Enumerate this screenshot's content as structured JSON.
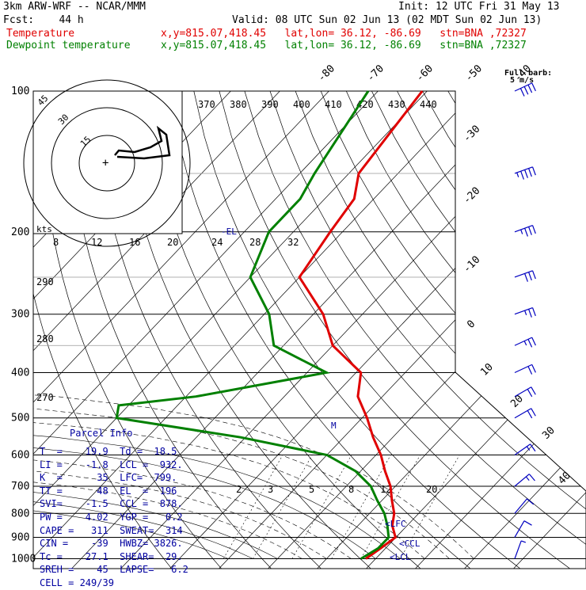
{
  "header": {
    "line1_left": "3km ARW-WRF -- NCAR/MMM",
    "line1_right": "Init: 12 UTC Fri 31 May 13",
    "line2_left": "Fcst:    44 h",
    "line2_right": "Valid: 08 UTC Sun 02 Jun 13 (02 MDT Sun 02 Jun 13)",
    "temp_label": "Temperature",
    "temp_info": "x,y=815.07,418.45   lat,lon= 36.12, -86.69   stn=BNA ,72327",
    "dew_label": "Dewpoint temperature",
    "dew_info": "x,y=815.07,418.45   lat,lon= 36.12, -86.69   stn=BNA ,72327"
  },
  "colors": {
    "temperature": "#e00000",
    "dewpoint": "#008000",
    "barbs": "#0000c0",
    "text_blue": "#0000a0"
  },
  "chart_data": {
    "type": "line",
    "subtype": "skew-T log-P sounding",
    "pressure_ticks": [
      "100",
      "200",
      "300",
      "400",
      "500",
      "600",
      "700",
      "800",
      "900",
      "1000"
    ],
    "pressure_levels": [
      100,
      200,
      300,
      400,
      500,
      600,
      700,
      800,
      900,
      1000
    ],
    "isotherm_top_labels": [
      "-80",
      "-70",
      "-60",
      "-50",
      "-40"
    ],
    "isotherm_right_labels": [
      "-30",
      "-20",
      "-10",
      "0",
      "10",
      "20",
      "30",
      "40"
    ],
    "theta_e_labels": [
      "370",
      "380",
      "390",
      "400",
      "410",
      "420",
      "430",
      "440"
    ],
    "theta_labels": [
      "290",
      "280",
      "270"
    ],
    "mixing_ratio_labels": [
      "2",
      "3",
      "5",
      "8",
      "12",
      "20"
    ],
    "hodograph": {
      "unit_label": "kts",
      "ring_labels": [
        "15",
        "30",
        "45"
      ],
      "speed_labels": [
        "8",
        "12",
        "16",
        "20",
        "24",
        "28",
        "32"
      ]
    },
    "full_barb_label": "Full barb:",
    "full_barb_value": "5 m/s",
    "markers": [
      "-EL",
      "LFC",
      "CCL",
      "LCL",
      "M"
    ],
    "series": [
      {
        "name": "Temperature",
        "points": [
          [
            100,
            -61
          ],
          [
            150,
            -58
          ],
          [
            170,
            -54
          ],
          [
            200,
            -52.5
          ],
          [
            250,
            -50
          ],
          [
            300,
            -38
          ],
          [
            350,
            -30
          ],
          [
            400,
            -19
          ],
          [
            450,
            -15
          ],
          [
            500,
            -9
          ],
          [
            550,
            -4
          ],
          [
            600,
            1
          ],
          [
            650,
            5
          ],
          [
            700,
            9
          ],
          [
            750,
            12
          ],
          [
            800,
            15
          ],
          [
            850,
            17
          ],
          [
            900,
            19.9
          ],
          [
            950,
            19
          ],
          [
            1000,
            18
          ]
        ]
      },
      {
        "name": "Dewpoint temperature",
        "points": [
          [
            100,
            -72
          ],
          [
            150,
            -67
          ],
          [
            170,
            -65
          ],
          [
            200,
            -65
          ],
          [
            250,
            -60
          ],
          [
            300,
            -49
          ],
          [
            350,
            -42
          ],
          [
            400,
            -26
          ],
          [
            450,
            -48
          ],
          [
            470,
            -62
          ],
          [
            500,
            -60
          ],
          [
            550,
            -31
          ],
          [
            600,
            -10
          ],
          [
            650,
            -1
          ],
          [
            700,
            5
          ],
          [
            750,
            9
          ],
          [
            800,
            13
          ],
          [
            850,
            16
          ],
          [
            900,
            18.5
          ],
          [
            950,
            18.5
          ],
          [
            1000,
            17
          ]
        ]
      }
    ],
    "wind_levels": [
      {
        "p": 100,
        "speed": 40,
        "dir": 245
      },
      {
        "p": 150,
        "speed": 45,
        "dir": 250
      },
      {
        "p": 200,
        "speed": 35,
        "dir": 250
      },
      {
        "p": 250,
        "speed": 30,
        "dir": 250
      },
      {
        "p": 300,
        "speed": 25,
        "dir": 250
      },
      {
        "p": 350,
        "speed": 25,
        "dir": 245
      },
      {
        "p": 400,
        "speed": 20,
        "dir": 245
      },
      {
        "p": 450,
        "speed": 20,
        "dir": 240
      },
      {
        "p": 500,
        "speed": 20,
        "dir": 240
      },
      {
        "p": 600,
        "speed": 15,
        "dir": 235
      },
      {
        "p": 700,
        "speed": 15,
        "dir": 230
      },
      {
        "p": 800,
        "speed": 10,
        "dir": 220
      },
      {
        "p": 900,
        "speed": 10,
        "dir": 210
      },
      {
        "p": 1000,
        "speed": 5,
        "dir": 200
      }
    ]
  },
  "parcel_info": {
    "title": "Parcel Info",
    "rows": [
      "T  =    19.9  Td =  18.5",
      "LI =    -1.8  LCL =  932.",
      "K  =      35  LFC=  799.",
      "TT =      48  EL  =  196",
      "SVI=    -1.5  CCL =  878.",
      "PW =    4.02  YGP =   0.2",
      "CAPE =   311  SWEAT=  314",
      "CIN =    -39  HWBZ= 3826.",
      "Tc =    27.1  SHEAR=  29.",
      "SREH =    45  LAPSE=   6.2",
      "CELL = 249/39"
    ]
  }
}
